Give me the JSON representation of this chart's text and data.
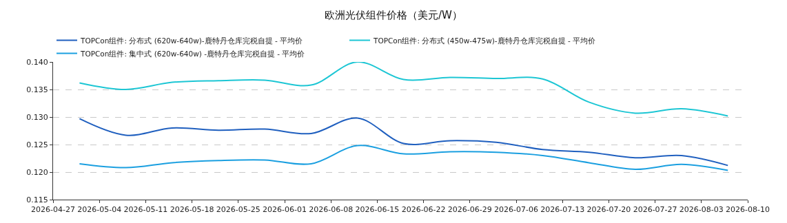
{
  "chart_data": {
    "type": "line",
    "title": "欧洲光伏组件价格（美元/W）",
    "x": [
      "2026-05-01",
      "2026-05-08",
      "2026-05-15",
      "2026-05-22",
      "2026-05-29",
      "2026-06-05",
      "2026-06-12",
      "2026-06-19",
      "2026-06-26",
      "2026-07-03",
      "2026-07-10",
      "2026-07-17",
      "2026-07-24",
      "2026-07-31",
      "2026-08-07"
    ],
    "series": [
      {
        "name": "TOPCon组件: 分布式 (620w-640w)-鹿特丹仓库完税自提 - 平均价",
        "color": "#1f5fbf",
        "values": [
          0.1297,
          0.1267,
          0.128,
          0.1276,
          0.1278,
          0.127,
          0.1298,
          0.1252,
          0.1257,
          0.1254,
          0.1241,
          0.1236,
          0.1226,
          0.123,
          0.1212
        ]
      },
      {
        "name": "TOPCon组件: 分布式 (450w-475w)-鹿特丹仓库完税自提 - 平均价",
        "color": "#1cc6d4",
        "values": [
          0.1362,
          0.135,
          0.1363,
          0.1366,
          0.1367,
          0.1358,
          0.14,
          0.1368,
          0.1372,
          0.137,
          0.1369,
          0.1327,
          0.1307,
          0.1315,
          0.1302
        ]
      },
      {
        "name": "TOPCon组件: 集中式 (620w-640w) -鹿特丹仓库完税自提 - 平均价",
        "color": "#1a9fe0",
        "values": [
          0.1215,
          0.1208,
          0.1217,
          0.1221,
          0.1222,
          0.1215,
          0.1248,
          0.1233,
          0.1237,
          0.1236,
          0.123,
          0.1217,
          0.1205,
          0.1214,
          0.1203
        ]
      }
    ],
    "xlim": [
      "2026-04-27",
      "2026-08-10"
    ],
    "xticks": [
      "2026-04-27",
      "2026-05-04",
      "2026-05-11",
      "2026-05-18",
      "2026-05-25",
      "2026-06-01",
      "2026-06-08",
      "2026-06-15",
      "2026-06-22",
      "2026-06-29",
      "2026-07-06",
      "2026-07-13",
      "2026-07-20",
      "2026-07-27",
      "2026-08-03",
      "2026-08-10"
    ],
    "ylim": [
      0.115,
      0.14
    ],
    "yticks": [
      {
        "value": 0.115,
        "label": "0.115"
      },
      {
        "value": 0.12,
        "label": "0.120"
      },
      {
        "value": 0.125,
        "label": "0.125"
      },
      {
        "value": 0.13,
        "label": "0.130"
      },
      {
        "value": 0.135,
        "label": "0.135"
      },
      {
        "value": 0.14,
        "label": "0.140"
      }
    ],
    "grid": "y",
    "legend": "top",
    "marker": "none",
    "line_style": "solid"
  }
}
